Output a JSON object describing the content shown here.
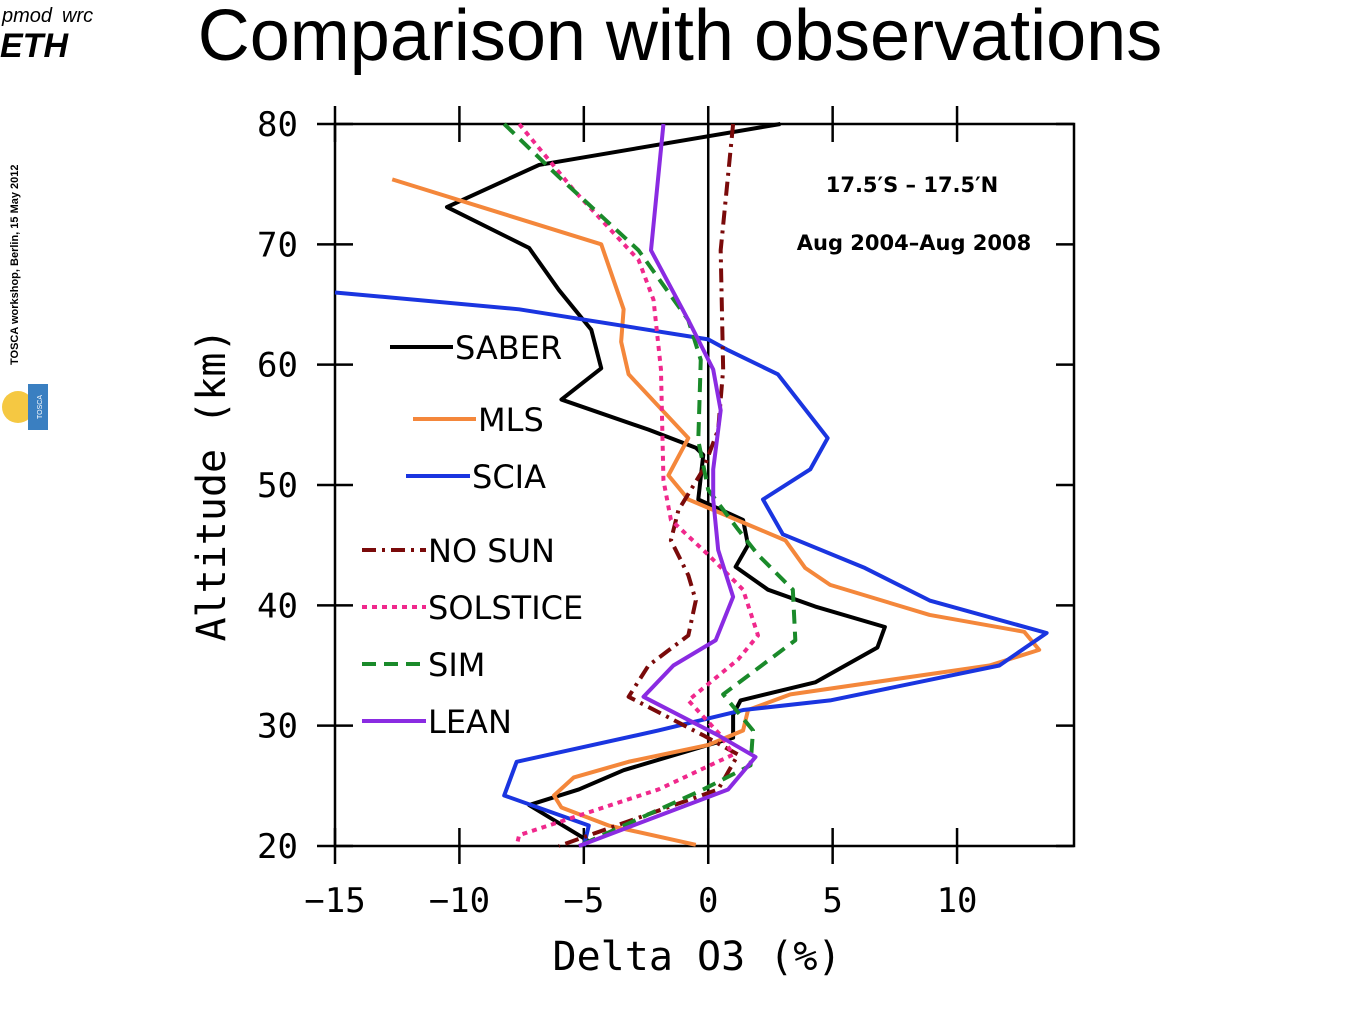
{
  "header": {
    "title": "Comparison with observations",
    "side_note": "TOSCA workshop, Berlin,  15 May 2012",
    "logos": [
      "pmod",
      "wrc",
      "ETH",
      "TOSCA"
    ]
  },
  "chart_data": {
    "type": "line",
    "xlabel": "Delta O3 (%)",
    "ylabel": "Altitude (km)",
    "annotations": [
      "17.5′S – 17.5′N",
      "Aug 2004–Aug 2008"
    ],
    "xlim": [
      -15,
      14.7
    ],
    "ylim": [
      20,
      80
    ],
    "xticks": [
      {
        "value": -15,
        "label": "−15"
      },
      {
        "value": -10,
        "label": "−10"
      },
      {
        "value": -5,
        "label": "−5"
      },
      0,
      5,
      10
    ],
    "yticks": [
      20,
      30,
      40,
      50,
      60,
      70,
      80
    ],
    "vline": 0,
    "series": [
      {
        "name": "SABER",
        "color": "#000000",
        "dash": "solid",
        "x": [
          2.9,
          -6.8,
          -10.5,
          -7.2,
          -6,
          -4.7,
          -4.3,
          -5.9,
          -2.4,
          -0.5,
          -0.2,
          -0.4,
          1.4,
          1.6,
          1.1,
          2.4,
          4.3,
          7.1,
          6.8,
          4.3,
          1.3,
          1.0,
          1.0,
          0,
          -3.4,
          -5.2,
          -7.2,
          -4.8
        ],
        "values": [
          80,
          76.6,
          73.1,
          69.7,
          66.2,
          62.9,
          59.7,
          57.1,
          54.6,
          53.1,
          52.5,
          48.8,
          47.1,
          45.0,
          43.2,
          41.3,
          39.9,
          38.2,
          36.5,
          33.6,
          32.1,
          30.9,
          29.0,
          28.4,
          26.3,
          24.7,
          23.4,
          20.4
        ]
      },
      {
        "name": "MLS",
        "color": "#f4873b",
        "dash": "solid",
        "x": [
          -12.7,
          -4.3,
          -3.4,
          -3.5,
          -3.2,
          -0.8,
          -1.6,
          -0.8,
          3.1,
          3.9,
          4.9,
          8.9,
          12.7,
          13.3,
          11.3,
          3.3,
          1.6,
          1.4,
          0,
          -3.2,
          -5.4,
          -6.2,
          -5.9,
          -4,
          -0.5
        ],
        "values": [
          75.4,
          70,
          64.6,
          61.9,
          59.2,
          53.9,
          50.8,
          48.8,
          45.4,
          43.1,
          41.7,
          39.2,
          37.8,
          36.3,
          35,
          32.6,
          31.3,
          29.6,
          28.4,
          27,
          25.7,
          24.2,
          23.2,
          21.7,
          20.1
        ]
      },
      {
        "name": "SCIA",
        "color": "#1a35e0",
        "dash": "solid",
        "x": [
          -15,
          -7.6,
          0,
          0.8,
          2.8,
          4.8,
          4.1,
          2.2,
          3.0,
          6.3,
          8.9,
          13.6,
          11.7,
          4.9,
          1.4,
          -2,
          -7.7,
          -8.2,
          -4.8,
          -5
        ],
        "values": [
          66,
          64.6,
          62.1,
          61.2,
          59.2,
          53.9,
          51.3,
          48.8,
          45.9,
          43.1,
          40.4,
          37.7,
          35,
          32.1,
          31.3,
          29.6,
          27,
          24.2,
          21.7,
          20
        ]
      },
      {
        "name": "NO SUN",
        "color": "#7a0a0a",
        "dash": "dashdot",
        "x": [
          1,
          0.5,
          0.6,
          0.4,
          -0.2,
          -1.2,
          -1.5,
          -0.8,
          -0.5,
          -0.8,
          -2.4,
          -3.2,
          -0.2,
          1.2,
          0.4,
          -6
        ],
        "values": [
          80,
          69.5,
          59.6,
          54.6,
          51.3,
          47.9,
          45.4,
          42.5,
          40.4,
          37.5,
          35.0,
          32.4,
          29.2,
          27.6,
          24.7,
          20
        ]
      },
      {
        "name": "SOLSTICE",
        "color": "#f0288c",
        "dash": "dot",
        "x": [
          -7.6,
          -5.4,
          -2.8,
          -2.2,
          -1.9,
          -1.8,
          -1.5,
          0,
          1.4,
          2.0,
          1.2,
          -0.8,
          0.5,
          1,
          -2,
          -7.6,
          -7.7
        ],
        "values": [
          80,
          74.5,
          68.7,
          65.4,
          59.6,
          50.4,
          47.1,
          44.2,
          41.3,
          37.5,
          35.5,
          32.1,
          29.2,
          27.6,
          24.7,
          20.9,
          20
        ]
      },
      {
        "name": "SIM",
        "color": "#1a8a2a",
        "dash": "dash",
        "x": [
          -8.2,
          -6,
          -2.8,
          -0.8,
          -0.3,
          -0.4,
          0,
          1.2,
          2.0,
          3.4,
          3.5,
          0.6,
          1.8,
          1.7,
          -0.2,
          -5.2
        ],
        "values": [
          80,
          75.6,
          69.5,
          63.7,
          60.4,
          53.7,
          49.6,
          46.3,
          44.2,
          41.3,
          37.1,
          32.6,
          29.6,
          26.7,
          24.7,
          20
        ]
      },
      {
        "name": "LEAN",
        "color": "#8a2be2",
        "dash": "solid",
        "x": [
          -1.8,
          -2.3,
          -0.8,
          0.2,
          0.5,
          0.2,
          0.2,
          0.4,
          1.0,
          0.3,
          -1.4,
          -2.6,
          0.4,
          1.9,
          0.8,
          -5.2
        ],
        "values": [
          80,
          69.5,
          63.7,
          59.6,
          56.2,
          51.3,
          48.8,
          44.6,
          40.7,
          37.1,
          35.0,
          32.4,
          29.2,
          27.4,
          24.7,
          20
        ]
      }
    ]
  }
}
